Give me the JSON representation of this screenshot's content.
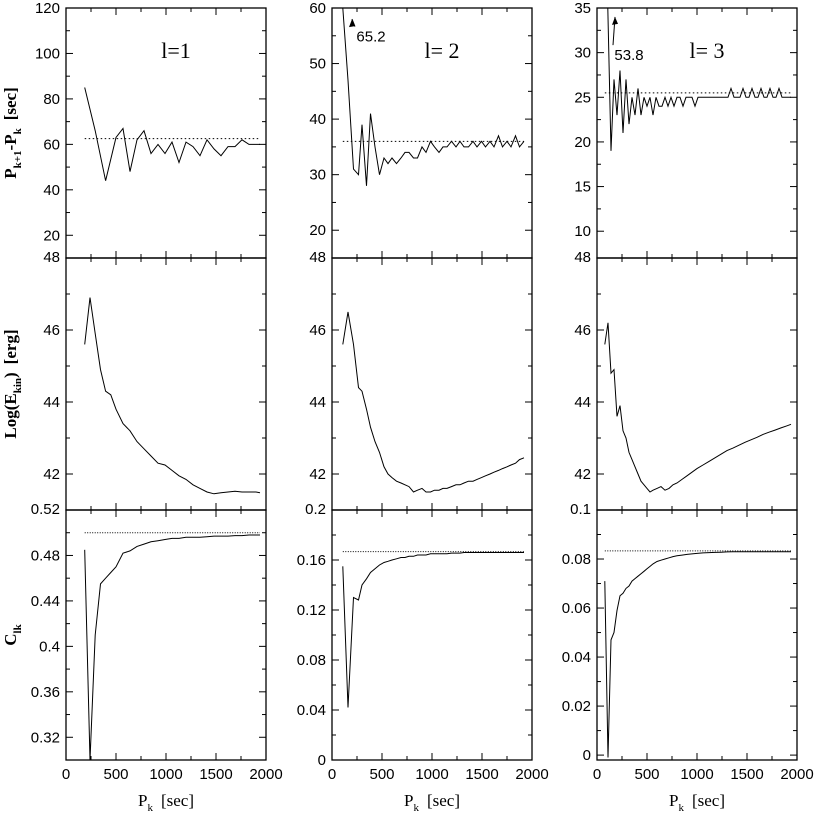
{
  "chart_data": {
    "type": "line",
    "columns": [
      {
        "panel_label": "l=1",
        "x_ticks": [
          "0",
          "500",
          "1000",
          "1500",
          "2000"
        ]
      },
      {
        "panel_label": "l= 2",
        "x_ticks": [
          "0",
          "500",
          "1000",
          "1500",
          "2000"
        ]
      },
      {
        "panel_label": "l= 3",
        "x_ticks": [
          "0",
          "500",
          "1000",
          "1500",
          "2000"
        ]
      }
    ],
    "xlabel_main": "P",
    "xlabel_sub": "k",
    "xlabel_unit": "[sec]",
    "xlim": [
      0,
      2000
    ],
    "row_labels": [
      {
        "main": "P",
        "sub": "k+1",
        "mid": "-P",
        "sub2": "k",
        "unit": "[sec]"
      },
      {
        "main": "Log(E",
        "sub": "kin",
        "mid": ")",
        "sub2": "",
        "unit": "[erg]"
      },
      {
        "main": "C",
        "sub": "lk",
        "mid": "",
        "sub2": "",
        "unit": ""
      }
    ],
    "panels": [
      {
        "id": "period-spacing-l1",
        "row": 0,
        "col": 0,
        "ylim": [
          10,
          120
        ],
        "yticks": [
          20,
          40,
          60,
          80,
          100,
          120
        ],
        "ytick_labels": [
          "20",
          "40",
          "60",
          "80",
          "100",
          "120"
        ],
        "reference_line": 62.5,
        "x": [
          187,
          292,
          396,
          500,
          570,
          640,
          710,
          780,
          850,
          920,
          990,
          1060,
          1130,
          1200,
          1270,
          1340,
          1410,
          1480,
          1550,
          1620,
          1690,
          1760,
          1830,
          1900,
          1940
        ],
        "y": [
          85,
          66,
          44,
          63,
          67,
          48,
          62,
          66,
          56,
          60,
          56,
          61,
          52,
          61,
          59,
          55,
          62,
          58,
          55,
          59,
          59,
          62,
          60,
          60,
          60
        ]
      },
      {
        "id": "period-spacing-l2",
        "row": 0,
        "col": 1,
        "ylim": [
          15,
          60
        ],
        "yticks": [
          20,
          30,
          40,
          50,
          60
        ],
        "ytick_labels": [
          "20",
          "30",
          "40",
          "50",
          "60"
        ],
        "reference_line": 36,
        "annotation": {
          "text": "65.2",
          "x": 270,
          "y": 54.5,
          "arrow_to_x": 200,
          "arrow_to_y": 58
        },
        "x": [
          108,
          160,
          215,
          265,
          300,
          345,
          385,
          430,
          475,
          520,
          560,
          600,
          645,
          690,
          730,
          770,
          815,
          855,
          900,
          940,
          985,
          1025,
          1070,
          1110,
          1150,
          1195,
          1240,
          1280,
          1320,
          1365,
          1410,
          1450,
          1495,
          1535,
          1580,
          1620,
          1665,
          1705,
          1750,
          1790,
          1835,
          1875,
          1920
        ],
        "y": [
          60,
          47,
          31,
          30,
          39,
          28,
          41,
          35,
          30,
          33,
          32,
          33,
          32,
          33,
          34,
          34,
          33,
          33,
          35,
          34,
          36,
          35,
          34,
          35,
          35,
          36,
          35,
          36,
          35,
          35,
          36,
          35,
          36,
          35,
          36,
          35,
          37,
          35,
          36,
          35,
          37,
          35,
          36
        ]
      },
      {
        "id": "period-spacing-l3",
        "row": 0,
        "col": 2,
        "ylim": [
          7,
          35
        ],
        "yticks": [
          10,
          15,
          20,
          25,
          30,
          35
        ],
        "ytick_labels": [
          "10",
          "15",
          "20",
          "25",
          "30",
          "35"
        ],
        "reference_line": 25.5,
        "annotation": {
          "text": "53.8",
          "x": 200,
          "y": 29.5,
          "arrow_to_x": 180,
          "arrow_to_y": 34
        },
        "x": [
          78,
          108,
          140,
          170,
          200,
          230,
          260,
          290,
          320,
          350,
          380,
          410,
          440,
          470,
          500,
          530,
          560,
          590,
          620,
          650,
          680,
          710,
          740,
          770,
          800,
          830,
          860,
          890,
          920,
          950,
          980,
          1010,
          1040,
          1070,
          1100,
          1130,
          1160,
          1190,
          1220,
          1250,
          1280,
          1310,
          1340,
          1370,
          1400,
          1430,
          1460,
          1490,
          1520,
          1550,
          1580,
          1610,
          1640,
          1670,
          1700,
          1730,
          1760,
          1790,
          1820,
          1850,
          1880,
          1910,
          1940
        ],
        "y": [
          35,
          35,
          19,
          27,
          23,
          28,
          21,
          27,
          22,
          25,
          23,
          26,
          23,
          25,
          24,
          25,
          23,
          25,
          24,
          24,
          25,
          24,
          25,
          24,
          25,
          25,
          24,
          25,
          25,
          25,
          24,
          25,
          25,
          25,
          25,
          25,
          25,
          25,
          25,
          25,
          25,
          25,
          26,
          25,
          25,
          25,
          26,
          25,
          25,
          26,
          25,
          25,
          26,
          25,
          25,
          26,
          25,
          25,
          26,
          25,
          25,
          25,
          25
        ]
      },
      {
        "id": "kinetic-energy-l1",
        "row": 1,
        "col": 0,
        "ylim": [
          41,
          48
        ],
        "yticks": [
          42,
          44,
          46,
          48
        ],
        "ytick_labels": [
          "42",
          "44",
          "46",
          "48"
        ],
        "x": [
          187,
          240,
          292,
          345,
          396,
          448,
          500,
          570,
          640,
          710,
          780,
          850,
          920,
          990,
          1060,
          1130,
          1200,
          1270,
          1340,
          1410,
          1480,
          1550,
          1620,
          1690,
          1760,
          1830,
          1900,
          1940
        ],
        "y": [
          45.6,
          46.9,
          45.9,
          44.9,
          44.3,
          44.2,
          43.8,
          43.4,
          43.2,
          42.9,
          42.7,
          42.5,
          42.3,
          42.25,
          42.1,
          41.95,
          41.85,
          41.7,
          41.6,
          41.5,
          41.45,
          41.48,
          41.5,
          41.52,
          41.5,
          41.5,
          41.5,
          41.48
        ]
      },
      {
        "id": "kinetic-energy-l2",
        "row": 1,
        "col": 1,
        "ylim": [
          41,
          48
        ],
        "yticks": [
          42,
          44,
          46,
          48
        ],
        "ytick_labels": [
          "42",
          "44",
          "46",
          "48"
        ],
        "x": [
          108,
          160,
          215,
          265,
          300,
          345,
          385,
          430,
          475,
          520,
          560,
          600,
          645,
          690,
          730,
          770,
          815,
          855,
          900,
          940,
          985,
          1025,
          1070,
          1110,
          1150,
          1195,
          1240,
          1280,
          1320,
          1365,
          1410,
          1450,
          1495,
          1535,
          1580,
          1620,
          1665,
          1705,
          1750,
          1790,
          1835,
          1875,
          1920
        ],
        "y": [
          45.6,
          46.5,
          45.6,
          44.4,
          44.3,
          43.8,
          43.3,
          42.9,
          42.6,
          42.2,
          42.0,
          41.9,
          41.8,
          41.75,
          41.7,
          41.65,
          41.5,
          41.55,
          41.6,
          41.5,
          41.5,
          41.55,
          41.55,
          41.6,
          41.6,
          41.65,
          41.7,
          41.7,
          41.75,
          41.8,
          41.8,
          41.85,
          41.9,
          41.95,
          42.0,
          42.05,
          42.1,
          42.15,
          42.2,
          42.25,
          42.3,
          42.4,
          42.45
        ]
      },
      {
        "id": "kinetic-energy-l3",
        "row": 1,
        "col": 2,
        "ylim": [
          41,
          48
        ],
        "yticks": [
          42,
          44,
          46,
          48
        ],
        "ytick_labels": [
          "42",
          "44",
          "46",
          "48"
        ],
        "x": [
          78,
          110,
          140,
          170,
          200,
          230,
          260,
          290,
          320,
          350,
          380,
          410,
          440,
          470,
          500,
          530,
          560,
          600,
          640,
          680,
          720,
          760,
          800,
          850,
          900,
          950,
          1000,
          1060,
          1120,
          1180,
          1240,
          1300,
          1360,
          1420,
          1480,
          1540,
          1600,
          1660,
          1720,
          1780,
          1840,
          1900,
          1940
        ],
        "y": [
          45.6,
          46.2,
          44.8,
          44.9,
          43.6,
          43.9,
          43.2,
          43.0,
          42.6,
          42.4,
          42.2,
          42.0,
          41.8,
          41.7,
          41.6,
          41.5,
          41.55,
          41.6,
          41.65,
          41.55,
          41.6,
          41.7,
          41.75,
          41.85,
          41.95,
          42.05,
          42.15,
          42.25,
          42.35,
          42.45,
          42.55,
          42.65,
          42.72,
          42.8,
          42.88,
          42.95,
          43.02,
          43.1,
          43.16,
          43.22,
          43.28,
          43.34,
          43.38
        ]
      },
      {
        "id": "ledoux-constant-l1",
        "row": 2,
        "col": 0,
        "ylim": [
          0.3,
          0.52
        ],
        "yticks": [
          0.32,
          0.36,
          0.4,
          0.44,
          0.48,
          0.52
        ],
        "ytick_labels": [
          "0.32",
          "0.36",
          "0.4",
          "0.44",
          "0.48",
          "0.52"
        ],
        "reference_line": 0.5,
        "x": [
          187,
          240,
          292,
          345,
          396,
          448,
          500,
          570,
          640,
          710,
          780,
          850,
          920,
          990,
          1060,
          1130,
          1200,
          1270,
          1340,
          1410,
          1480,
          1550,
          1620,
          1690,
          1760,
          1830,
          1900,
          1940
        ],
        "y": [
          0.485,
          0.3,
          0.41,
          0.455,
          0.46,
          0.465,
          0.47,
          0.482,
          0.484,
          0.488,
          0.49,
          0.492,
          0.493,
          0.494,
          0.495,
          0.495,
          0.496,
          0.496,
          0.496,
          0.4965,
          0.497,
          0.497,
          0.497,
          0.4975,
          0.4975,
          0.498,
          0.498,
          0.498
        ]
      },
      {
        "id": "ledoux-constant-l2",
        "row": 2,
        "col": 1,
        "ylim": [
          0,
          0.2
        ],
        "yticks": [
          0,
          0.04,
          0.08,
          0.12,
          0.16,
          0.2
        ],
        "ytick_labels": [
          "0",
          "0.04",
          "0.08",
          "0.12",
          "0.16",
          "0.2"
        ],
        "reference_line": 0.1667,
        "x": [
          108,
          160,
          215,
          265,
          300,
          345,
          385,
          430,
          475,
          520,
          560,
          600,
          645,
          690,
          730,
          770,
          815,
          855,
          900,
          940,
          985,
          1025,
          1070,
          1110,
          1150,
          1195,
          1240,
          1280,
          1320,
          1365,
          1410,
          1450,
          1495,
          1535,
          1580,
          1620,
          1665,
          1705,
          1750,
          1790,
          1835,
          1875,
          1920
        ],
        "y": [
          0.155,
          0.042,
          0.13,
          0.128,
          0.14,
          0.145,
          0.15,
          0.153,
          0.156,
          0.158,
          0.159,
          0.16,
          0.161,
          0.162,
          0.162,
          0.163,
          0.163,
          0.164,
          0.164,
          0.164,
          0.165,
          0.165,
          0.165,
          0.165,
          0.165,
          0.1655,
          0.1655,
          0.1655,
          0.166,
          0.166,
          0.166,
          0.166,
          0.166,
          0.166,
          0.166,
          0.166,
          0.166,
          0.166,
          0.166,
          0.166,
          0.166,
          0.166,
          0.166
        ]
      },
      {
        "id": "ledoux-constant-l3",
        "row": 2,
        "col": 2,
        "ylim": [
          -0.002,
          0.1
        ],
        "yticks": [
          0,
          0.02,
          0.04,
          0.06,
          0.08,
          0.1
        ],
        "ytick_labels": [
          "0",
          "0.02",
          "0.04",
          "0.06",
          "0.08",
          "0.1"
        ],
        "reference_line": 0.0833,
        "x": [
          78,
          110,
          140,
          170,
          200,
          230,
          260,
          290,
          320,
          350,
          380,
          410,
          440,
          470,
          500,
          530,
          560,
          600,
          640,
          680,
          720,
          760,
          800,
          850,
          900,
          950,
          1000,
          1060,
          1120,
          1180,
          1240,
          1300,
          1360,
          1420,
          1480,
          1540,
          1600,
          1660,
          1720,
          1780,
          1840,
          1900,
          1940
        ],
        "y": [
          0.071,
          -0.001,
          0.047,
          0.05,
          0.059,
          0.065,
          0.066,
          0.068,
          0.069,
          0.071,
          0.072,
          0.073,
          0.074,
          0.075,
          0.076,
          0.077,
          0.078,
          0.079,
          0.0795,
          0.08,
          0.0805,
          0.081,
          0.0813,
          0.0816,
          0.0819,
          0.0821,
          0.0823,
          0.0825,
          0.0826,
          0.0827,
          0.0828,
          0.0829,
          0.083,
          0.083,
          0.083,
          0.083,
          0.083,
          0.083,
          0.083,
          0.083,
          0.083,
          0.083,
          0.083
        ]
      }
    ]
  }
}
